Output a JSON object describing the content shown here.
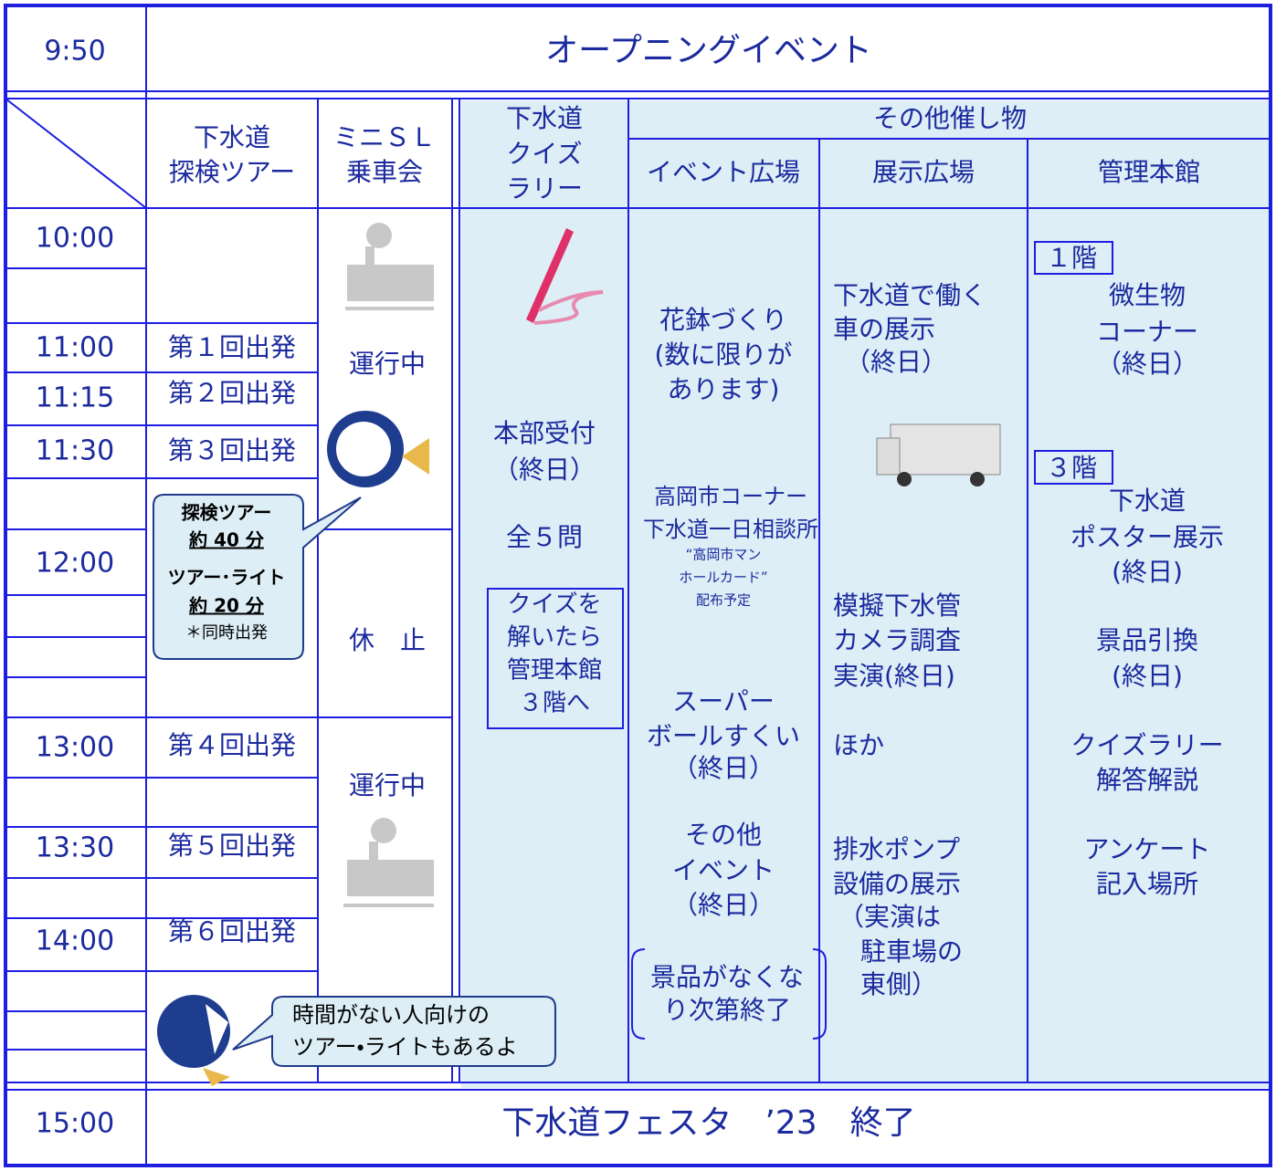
{
  "opening": {
    "time": "9:50",
    "title": "オープニングイベント"
  },
  "header": {
    "tour": [
      "下水道",
      "探検ツアー"
    ],
    "mini_sl": [
      "ミニＳＬ",
      "乗車会"
    ],
    "quiz_rally": [
      "下水道",
      "クイズ",
      "ラリー"
    ],
    "other_events": "その他催し物",
    "event_plaza": "イベント広場",
    "exhibit_plaza": "展示広場",
    "main_hall": "管理本館"
  },
  "times": [
    "10:00",
    "11:00",
    "11:15",
    "11:30",
    "12:00",
    "13:00",
    "13:30",
    "14:00"
  ],
  "tour_departures": [
    "第１回出発",
    "第２回出発",
    "第３回出発",
    "第４回出発",
    "第５回出発",
    "第６回出発"
  ],
  "mini_sl": [
    "運行中",
    "休　止",
    "運行中"
  ],
  "tour_note": [
    "探検ツアー",
    "約 40 分",
    "ツアー･ライト",
    "約 20 分",
    "＊同時出発"
  ],
  "quiz_rally": {
    "reception": [
      "本部受付",
      "（終日）"
    ],
    "questions": "全５問",
    "note": [
      "クイズを",
      "解いたら",
      "管理本館",
      "３階へ"
    ]
  },
  "event_plaza": {
    "flower_pots": [
      "花鉢づくり",
      "(数に限りが",
      "あります)"
    ],
    "takaoka": [
      "高岡市コーナー",
      "下水道一日相談所"
    ],
    "manhole_card": [
      "“高岡市マン",
      "ホールカード”",
      "配布予定"
    ],
    "super_ball": [
      "スーパー",
      "ボールすくい",
      "（終日）"
    ],
    "other": [
      "その他",
      "イベント",
      "（終日）"
    ],
    "prize_note": [
      "景品がなくな",
      "り次第終了"
    ]
  },
  "exhibit_plaza": {
    "vehicles": [
      "下水道で働く",
      "車の展示",
      "（終日）"
    ],
    "camera": [
      "模擬下水管",
      "カメラ調査",
      "実演(終日)"
    ],
    "others": "ほか",
    "pump": [
      "排水ポンプ",
      "設備の展示",
      "（実演は",
      "駐車場の",
      "東側）"
    ]
  },
  "main_hall": {
    "floor1": "１階",
    "microbes": [
      "微生物",
      "コーナー",
      "（終日）"
    ],
    "floor3": "３階",
    "poster": [
      "下水道",
      "ポスター展示",
      "(終日)"
    ],
    "prize": [
      "景品引換",
      "(終日)"
    ],
    "quiz_answer": [
      "クイズラリー",
      "解答解説"
    ],
    "survey": [
      "アンケート",
      "記入場所"
    ]
  },
  "speech_bubble": [
    "時間がない人向けの",
    "ツアー・ライトもあるよ"
  ],
  "closing": {
    "time": "15:00",
    "title": "下水道フェスタ　’23　終了"
  }
}
